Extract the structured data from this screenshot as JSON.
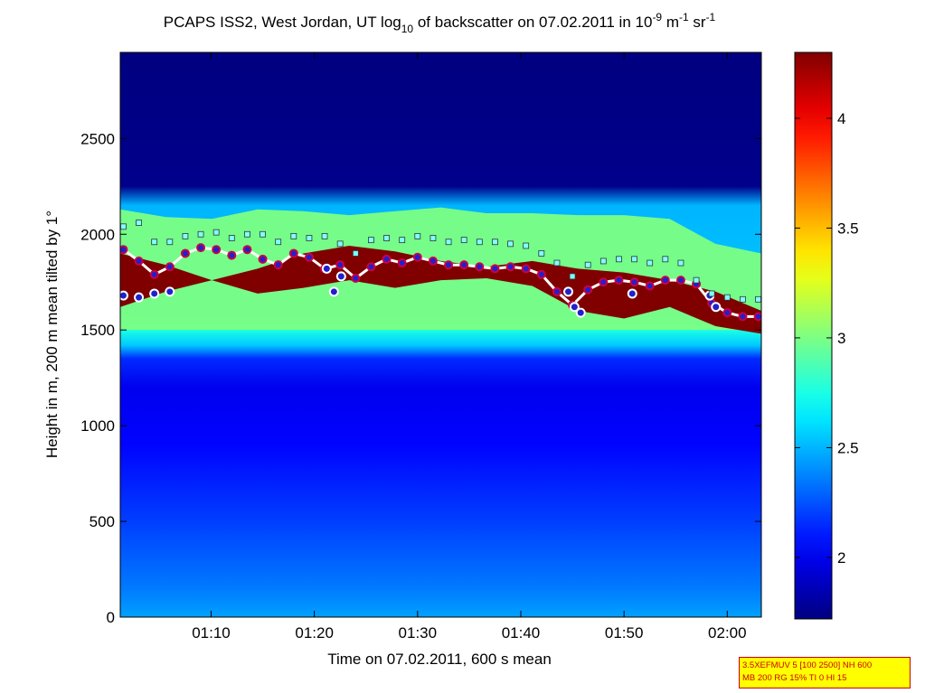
{
  "chart_data": {
    "type": "heatmap",
    "title": {
      "main": "PCAPS ISS2, West Jordan, UT log",
      "log_sub": "10",
      "mid": " of backscatter on 07.02.2011 in 10",
      "exp1": "-9",
      "unit1": " m",
      "exp2": "-1",
      "unit2": " sr",
      "exp3": "-1"
    },
    "xlabel": "Time on 07.02.2011, 600 s mean",
    "ylabel": "Height in m, 200 m mean tilted by 1°",
    "x_ticks": [
      "01:10",
      "01:20",
      "01:30",
      "01:40",
      "01:50",
      "02:00"
    ],
    "x_tick_minutes": [
      70,
      80,
      90,
      100,
      110,
      120
    ],
    "xlim_minutes": [
      61.2,
      123.3
    ],
    "y_ticks": [
      0,
      500,
      1000,
      1500,
      2000,
      2500
    ],
    "ylim": [
      0,
      2950
    ],
    "colorbar": {
      "ticks": [
        "2",
        "2.5",
        "3",
        "3.5",
        "4"
      ],
      "tick_values": [
        2,
        2.5,
        3,
        3.5,
        4
      ],
      "range": [
        1.72,
        4.3
      ],
      "colormap": "jet"
    },
    "layer_height_series": {
      "name": "",
      "x_minutes": [
        61.5,
        63,
        64.5,
        66,
        67.5,
        69,
        70.5,
        72,
        73.5,
        75,
        76.5,
        78,
        79.5,
        81,
        82.5,
        84,
        85.5,
        87,
        88.5,
        90,
        91.5,
        93,
        94.5,
        96,
        97.5,
        99,
        100.5,
        102,
        103.5,
        105,
        106.5,
        108,
        109.5,
        111,
        112.5,
        114,
        115.5,
        117,
        118.5,
        120,
        121.5,
        123
      ],
      "y_m": [
        1920,
        1860,
        1790,
        1830,
        1900,
        1930,
        1920,
        1890,
        1920,
        1870,
        1840,
        1900,
        1880,
        1820,
        1840,
        1770,
        1830,
        1870,
        1850,
        1880,
        1860,
        1840,
        1840,
        1830,
        1820,
        1830,
        1820,
        1790,
        1700,
        1630,
        1710,
        1750,
        1760,
        1750,
        1730,
        1760,
        1760,
        1740,
        1640,
        1590,
        1570,
        1570
      ]
    },
    "lower_layer_series": {
      "name": "",
      "x_minutes": [
        61.5,
        63,
        64.5,
        66,
        81.2,
        81.9,
        82.6,
        104.6,
        105.2,
        105.8,
        110.8,
        118.3,
        118.9
      ],
      "y_m": [
        1680,
        1670,
        1690,
        1700,
        1820,
        1700,
        1780,
        1700,
        1620,
        1590,
        1690,
        1680,
        1620
      ]
    },
    "top_marker_series": {
      "name": "",
      "x_minutes": [
        61.5,
        63,
        64.5,
        66,
        67.5,
        69,
        70.5,
        72,
        73.5,
        75,
        76.5,
        78,
        79.5,
        81,
        82.5,
        84,
        85.5,
        87,
        88.5,
        90,
        91.5,
        93,
        94.5,
        96,
        97.5,
        99,
        100.5,
        102,
        103.5,
        105,
        106.5,
        108,
        109.5,
        111,
        112.5,
        114,
        115.5,
        117,
        118.5,
        120,
        121.5,
        123
      ],
      "y_m": [
        2040,
        2060,
        1960,
        1960,
        1990,
        2000,
        2010,
        1980,
        2000,
        2000,
        1960,
        1990,
        1980,
        1990,
        1950,
        1900,
        1970,
        1980,
        1970,
        1990,
        1980,
        1960,
        1970,
        1960,
        1960,
        1950,
        1940,
        1900,
        1850,
        1780,
        1840,
        1860,
        1870,
        1870,
        1850,
        1870,
        1850,
        1760,
        1690,
        1670,
        1660,
        1660
      ]
    },
    "layers": [
      {
        "kind": "log_backscatter_band",
        "z": 3.0,
        "x_minutes": [
          61.2,
          123.3
        ],
        "y_top_m": [
          2130,
          2090,
          2080,
          2130,
          2120,
          2100,
          2120,
          2140,
          2110,
          2110,
          2100,
          2100,
          2080,
          1950,
          1900
        ],
        "y_bottom_m": 1500
      },
      {
        "kind": "log_backscatter_band",
        "z": 4.3,
        "x_minutes": [
          61.2,
          123.3
        ],
        "y_top_m": [
          1900,
          1840,
          1760,
          1820,
          1900,
          1940,
          1910,
          1860,
          1830,
          1860,
          1820,
          1800,
          1760,
          1700,
          1600
        ],
        "y_bottom_m": [
          1620,
          1700,
          1760,
          1690,
          1720,
          1760,
          1720,
          1760,
          1770,
          1730,
          1600,
          1560,
          1620,
          1520,
          1480
        ]
      }
    ]
  },
  "info_box": {
    "line1": "3.5XEFMUV 5 [100 2500] NH 600",
    "line2": "MB 200 RG 15% TI 0 HI 15",
    "background": "#ffff00",
    "border": "#cc0000",
    "text_color": "#cc0000"
  },
  "colors": {
    "series_line": "#cc0044",
    "series_marker_fill": "#2020cc",
    "marker_square": "#7fffff",
    "background_sky": "#00108f"
  }
}
